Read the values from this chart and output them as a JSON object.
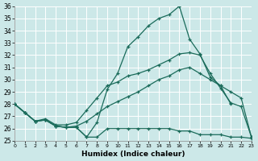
{
  "xlabel": "Humidex (Indice chaleur)",
  "xlim": [
    0,
    23
  ],
  "ylim": [
    25,
    36
  ],
  "yticks": [
    25,
    26,
    27,
    28,
    29,
    30,
    31,
    32,
    33,
    34,
    35,
    36
  ],
  "xticks": [
    0,
    1,
    2,
    3,
    4,
    5,
    6,
    7,
    8,
    9,
    10,
    11,
    12,
    13,
    14,
    15,
    16,
    17,
    18,
    19,
    20,
    21,
    22,
    23
  ],
  "line_color": "#1a6b5a",
  "bg_color": "#cce8e8",
  "grid_color": "#b0d4d4",
  "line1_x": [
    0,
    1,
    2,
    3,
    4,
    5,
    6,
    7,
    8,
    9,
    10,
    11,
    12,
    13,
    14,
    15,
    16,
    17,
    18,
    19,
    20,
    21
  ],
  "line1_y": [
    28.0,
    27.3,
    26.6,
    26.7,
    26.2,
    26.1,
    26.1,
    25.3,
    26.5,
    29.2,
    30.5,
    32.7,
    33.5,
    34.4,
    35.0,
    35.3,
    36.0,
    33.3,
    32.1,
    30.2,
    29.5,
    28.0
  ],
  "line2_x": [
    0,
    1,
    2,
    3,
    4,
    5,
    6,
    7,
    8,
    9,
    10,
    11,
    12,
    13,
    14,
    15,
    16,
    17,
    18,
    19,
    20,
    21,
    22,
    23
  ],
  "line2_y": [
    28.0,
    27.3,
    26.6,
    26.8,
    26.3,
    26.3,
    26.5,
    27.5,
    28.5,
    29.5,
    29.8,
    30.3,
    30.5,
    30.8,
    31.2,
    31.6,
    32.1,
    32.2,
    32.0,
    30.5,
    29.3,
    28.1,
    27.8,
    25.3
  ],
  "line3_x": [
    0,
    1,
    2,
    3,
    4,
    5,
    6,
    7,
    8,
    9,
    10,
    11,
    12,
    13,
    14,
    15,
    16,
    17,
    18,
    19,
    20,
    21,
    22,
    23
  ],
  "line3_y": [
    28.0,
    27.3,
    26.6,
    26.7,
    26.2,
    26.1,
    26.2,
    26.6,
    27.2,
    27.8,
    28.2,
    28.6,
    29.0,
    29.5,
    30.0,
    30.3,
    30.8,
    31.0,
    30.5,
    30.0,
    29.5,
    29.0,
    28.5,
    25.3
  ],
  "line4_x": [
    0,
    1,
    2,
    3,
    4,
    5,
    6,
    7,
    8,
    9,
    10,
    11,
    12,
    13,
    14,
    15,
    16,
    17,
    18,
    19,
    20,
    21,
    22,
    23
  ],
  "line4_y": [
    28.0,
    27.3,
    26.6,
    26.7,
    26.2,
    26.1,
    26.1,
    25.3,
    25.3,
    26.0,
    26.0,
    26.0,
    26.0,
    26.0,
    26.0,
    26.0,
    25.8,
    25.8,
    25.5,
    25.5,
    25.5,
    25.3,
    25.3,
    25.2
  ]
}
